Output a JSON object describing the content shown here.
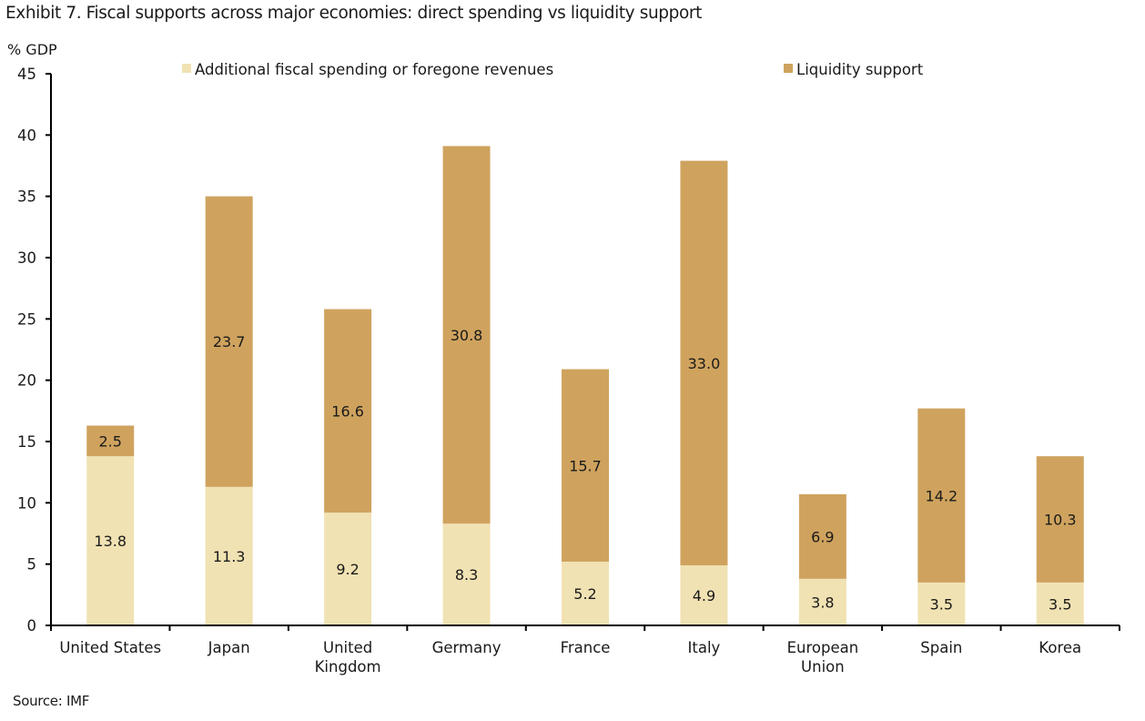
{
  "chart_data": {
    "type": "bar",
    "stacked": true,
    "title": "Exhibit 7. Fiscal supports across major economies: direct spending vs liquidity support",
    "ylabel": "% GDP",
    "xlabel": "",
    "ylim": [
      0,
      45
    ],
    "yticks": [
      0,
      5,
      10,
      15,
      20,
      25,
      30,
      35,
      40,
      45
    ],
    "grid": false,
    "legend_position": "top",
    "categories": [
      [
        "United States"
      ],
      [
        "Japan"
      ],
      [
        "United",
        "Kingdom"
      ],
      [
        "Germany"
      ],
      [
        "France"
      ],
      [
        "Italy"
      ],
      [
        "European",
        "Union"
      ],
      [
        "Spain"
      ],
      [
        "Korea"
      ]
    ],
    "series": [
      {
        "name": "Additional fiscal spending or foregone revenues",
        "color": "#F1E2B3",
        "values": [
          13.8,
          11.3,
          9.2,
          8.3,
          5.2,
          4.9,
          3.8,
          3.5,
          3.5
        ]
      },
      {
        "name": "Liquidity support",
        "color": "#CFA35E",
        "values": [
          2.5,
          23.7,
          16.6,
          30.8,
          15.7,
          33.0,
          6.9,
          14.2,
          10.3
        ]
      }
    ],
    "source": "Source: IMF"
  }
}
